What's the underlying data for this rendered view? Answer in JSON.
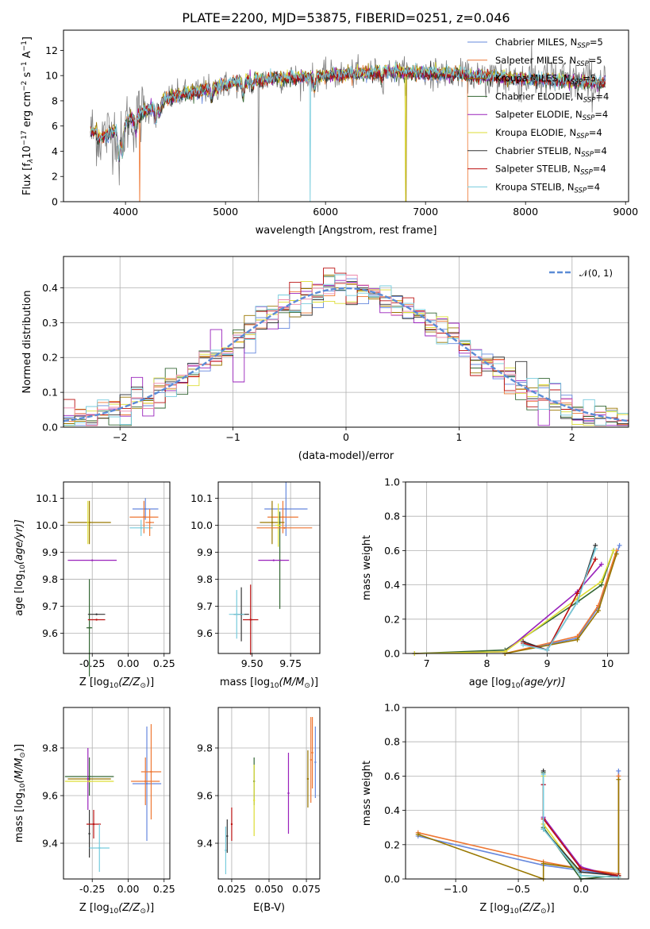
{
  "figure": {
    "title": "PLATE=2200, MJD=53875, FIBERID=0251, z=0.046"
  },
  "colors": {
    "ChabrierMILES": "#6688dd",
    "SalpeterMILES": "#ee7733",
    "KroupaMILES": "#997700",
    "ChabrierELODIE": "#336633",
    "SalpeterELODIE": "#9922bb",
    "KroupaELODIE": "#dddd33",
    "ChabrierSTELIB": "#333333",
    "SalpeterSTELIB": "#bb1111",
    "KroupaSTELIB": "#77ccdd",
    "normal": "#5b8bd6"
  },
  "chart_data": [
    {
      "id": "spectrum",
      "type": "line",
      "xlabel": "wavelength [Angstrom, rest frame]",
      "ylabel": "Flux [f",
      "ylabel_rest": "10",
      "ylabel_sup": "−17",
      "ylabel_unit": " erg cm",
      "ylabel_sup2": "−2",
      "ylabel_unit2": " s",
      "ylabel_sup3": "−1",
      "ylabel_unit3": " A",
      "ylabel_sup4": "−1",
      "ylabel_end": "]",
      "xlim": [
        3380,
        9030
      ],
      "ylim": [
        0,
        13.6
      ],
      "xticks": [
        4000,
        5000,
        6000,
        7000,
        8000,
        9000
      ],
      "yticks": [
        0,
        2,
        4,
        6,
        8,
        10,
        12
      ],
      "data_range": [
        3650,
        8800
      ],
      "legend": [
        {
          "name": "Chabrier MILES, N",
          "sub": "SSP",
          "n": "=5",
          "color": "ChabrierMILES"
        },
        {
          "name": "Salpeter MILES, N",
          "sub": "SSP",
          "n": "=5",
          "color": "SalpeterMILES"
        },
        {
          "name": "Kroupa MILES, N",
          "sub": "SSP",
          "n": "=5",
          "color": "KroupaMILES"
        },
        {
          "name": "Chabrier ELODIE, N",
          "sub": "SSP",
          "n": "=4",
          "color": "ChabrierELODIE"
        },
        {
          "name": "Salpeter ELODIE, N",
          "sub": "SSP",
          "n": "=4",
          "color": "SalpeterELODIE"
        },
        {
          "name": "Kroupa ELODIE, N",
          "sub": "SSP",
          "n": "=4",
          "color": "KroupaELODIE"
        },
        {
          "name": "Chabrier STELIB, N",
          "sub": "SSP",
          "n": "=4",
          "color": "ChabrierSTELIB"
        },
        {
          "name": "Salpeter STELIB, N",
          "sub": "SSP",
          "n": "=4",
          "color": "SalpeterSTELIB"
        },
        {
          "name": "Kroupa STELIB, N",
          "sub": "SSP",
          "n": "=4",
          "color": "KroupaSTELIB"
        }
      ],
      "legend_loc": "upper right"
    },
    {
      "id": "residuals",
      "type": "histogram",
      "xlabel": "(data-model)/error",
      "ylabel": "Normed distribution",
      "xlim": [
        -2.5,
        2.5
      ],
      "ylim": [
        0,
        0.49
      ],
      "xticks": [
        -2,
        -1,
        0,
        1,
        2
      ],
      "yticks": [
        0.0,
        0.1,
        0.2,
        0.3,
        0.4
      ],
      "bin_width": 0.1,
      "legend": "𝒩(0, 1)",
      "legend_loc": "upper right",
      "grid": true
    },
    {
      "id": "age-Z",
      "type": "errorbar",
      "xlabel": "Z [log",
      "xlabel_sub": "10",
      "xlabel_math": "(Z/Z",
      "xlabel_end": ")]",
      "ylabel": "age  [log",
      "ylabel_sub": "10",
      "ylabel_math": "(age/yr)]",
      "xlim": [
        -0.45,
        0.29
      ],
      "ylim": [
        9.525,
        10.16
      ],
      "xticks": [
        "-0.25",
        "0.00",
        "0.25"
      ],
      "xtick_vals": [
        -0.25,
        0.0,
        0.25
      ],
      "yticks": [
        "9.6",
        "9.7",
        "9.8",
        "9.9",
        "10.0",
        "10.1"
      ],
      "ytick_vals": [
        9.6,
        9.7,
        9.8,
        9.9,
        10.0,
        10.1
      ],
      "points": [
        {
          "x": 0.12,
          "y": 10.06,
          "xerr": 0.09,
          "yerr": 0.04,
          "c": "ChabrierMILES"
        },
        {
          "x": 0.11,
          "y": 10.03,
          "xerr": 0.1,
          "yerr": 0.06,
          "c": "SalpeterMILES"
        },
        {
          "x": -0.27,
          "y": 10.01,
          "xerr": 0.15,
          "yerr": 0.08,
          "c": "KroupaMILES"
        },
        {
          "x": -0.27,
          "y": 9.62,
          "xerr": 0.02,
          "yerr": 0.18,
          "c": "ChabrierELODIE"
        },
        {
          "x": -0.25,
          "y": 9.87,
          "xerr": 0.17,
          "yerr": 0.0,
          "c": "SalpeterELODIE"
        },
        {
          "x": -0.28,
          "y": 10.01,
          "xerr": 0.0,
          "yerr": 0.08,
          "c": "KroupaELODIE"
        },
        {
          "x": -0.22,
          "y": 9.67,
          "xerr": 0.06,
          "yerr": 0.0,
          "c": "ChabrierSTELIB"
        },
        {
          "x": -0.22,
          "y": 9.65,
          "xerr": 0.06,
          "yerr": 0.0,
          "c": "SalpeterSTELIB"
        },
        {
          "x": 0.09,
          "y": 9.99,
          "xerr": 0.08,
          "yerr": 0.03,
          "c": "KroupaSTELIB"
        },
        {
          "x": 0.15,
          "y": 10.01,
          "xerr": 0.03,
          "yerr": 0.05,
          "c": "SalpeterMILES"
        }
      ]
    },
    {
      "id": "age-mass",
      "type": "errorbar",
      "xlabel": "mass [log",
      "xlabel_sub": "10",
      "xlabel_math": "(M/M",
      "xlabel_end": ")]",
      "xlim": [
        9.28,
        9.94
      ],
      "ylim": [
        9.525,
        10.16
      ],
      "xticks": [
        "9.50",
        "9.75"
      ],
      "xtick_vals": [
        9.5,
        9.75
      ],
      "yticks": [
        "9.6",
        "9.7",
        "9.8",
        "9.9",
        "10.0",
        "10.1"
      ],
      "ytick_vals": [
        9.6,
        9.7,
        9.8,
        9.9,
        10.0,
        10.1
      ],
      "points": [
        {
          "x": 9.72,
          "y": 10.06,
          "xerr": 0.14,
          "yerr": 0.1,
          "c": "ChabrierMILES"
        },
        {
          "x": 9.7,
          "y": 10.03,
          "xerr": 0.1,
          "yerr": 0.06,
          "c": "SalpeterMILES"
        },
        {
          "x": 9.63,
          "y": 10.01,
          "xerr": 0.08,
          "yerr": 0.08,
          "c": "KroupaMILES"
        },
        {
          "x": 9.68,
          "y": 9.87,
          "xerr": 0.0,
          "yerr": 0.18,
          "c": "ChabrierELODIE"
        },
        {
          "x": 9.64,
          "y": 9.87,
          "xerr": 0.1,
          "yerr": 0.0,
          "c": "SalpeterELODIE"
        },
        {
          "x": 9.67,
          "y": 10.0,
          "xerr": 0.02,
          "yerr": 0.08,
          "c": "KroupaELODIE"
        },
        {
          "x": 9.43,
          "y": 9.67,
          "xerr": 0.05,
          "yerr": 0.1,
          "c": "ChabrierSTELIB"
        },
        {
          "x": 9.49,
          "y": 9.65,
          "xerr": 0.05,
          "yerr": 0.13,
          "c": "SalpeterSTELIB"
        },
        {
          "x": 9.4,
          "y": 9.67,
          "xerr": 0.05,
          "yerr": 0.09,
          "c": "KroupaSTELIB"
        },
        {
          "x": 9.71,
          "y": 9.99,
          "xerr": 0.18,
          "yerr": 0.0,
          "c": "SalpeterMILES"
        }
      ]
    },
    {
      "id": "massweight-age",
      "type": "line",
      "xlabel": "age  [log",
      "xlabel_sub": "10",
      "xlabel_math": "(age/yr)]",
      "ylabel": "mass weight",
      "xlim": [
        6.65,
        10.35
      ],
      "ylim": [
        0,
        1.0
      ],
      "xticks": [
        "7",
        "8",
        "9",
        "10"
      ],
      "xtick_vals": [
        7,
        8,
        9,
        10
      ],
      "yticks": [
        "0.0",
        "0.2",
        "0.4",
        "0.6",
        "0.8",
        "1.0"
      ],
      "ytick_vals": [
        0,
        0.2,
        0.4,
        0.6,
        0.8,
        1.0
      ],
      "series": [
        {
          "c": "ChabrierMILES",
          "x": [
            8.3,
            9.5,
            9.85,
            10.2
          ],
          "y": [
            0.0,
            0.09,
            0.27,
            0.63
          ]
        },
        {
          "c": "SalpeterMILES",
          "x": [
            8.3,
            9.5,
            9.85,
            10.15
          ],
          "y": [
            0.0,
            0.1,
            0.28,
            0.6
          ]
        },
        {
          "c": "KroupaMILES",
          "x": [
            8.3,
            9.5,
            9.85,
            10.15
          ],
          "y": [
            0.0,
            0.08,
            0.25,
            0.58
          ]
        },
        {
          "c": "ChabrierELODIE",
          "x": [
            6.8,
            8.3,
            9.5,
            9.9,
            10.1
          ],
          "y": [
            0.0,
            0.02,
            0.3,
            0.4,
            0.6
          ]
        },
        {
          "c": "SalpeterELODIE",
          "x": [
            6.8,
            8.3,
            9.5,
            9.9
          ],
          "y": [
            0.0,
            0.01,
            0.36,
            0.52
          ]
        },
        {
          "c": "KroupaELODIE",
          "x": [
            6.8,
            8.3,
            9.5,
            9.9,
            10.1
          ],
          "y": [
            0.0,
            0.01,
            0.32,
            0.42,
            0.6
          ]
        },
        {
          "c": "ChabrierSTELIB",
          "x": [
            8.6,
            9.0,
            9.5,
            9.8
          ],
          "y": [
            0.07,
            0.02,
            0.3,
            0.63
          ]
        },
        {
          "c": "SalpeterSTELIB",
          "x": [
            8.6,
            9.0,
            9.5,
            9.8
          ],
          "y": [
            0.06,
            0.02,
            0.35,
            0.55
          ]
        },
        {
          "c": "KroupaSTELIB",
          "x": [
            8.6,
            9.0,
            9.5,
            9.8
          ],
          "y": [
            0.05,
            0.02,
            0.3,
            0.61
          ]
        }
      ]
    },
    {
      "id": "mass-Z",
      "type": "errorbar",
      "xlabel": "Z [log",
      "xlabel_sub": "10",
      "xlabel_math": "(Z/Z",
      "xlabel_end": ")]",
      "ylabel": "mass [log",
      "ylabel_sub": "10",
      "ylabel_math": "(M/M",
      "ylabel_end": ")]",
      "xlim": [
        -0.45,
        0.29
      ],
      "ylim": [
        9.25,
        9.97
      ],
      "xticks": [
        "-0.25",
        "0.00",
        "0.25"
      ],
      "xtick_vals": [
        -0.25,
        0.0,
        0.25
      ],
      "yticks": [
        "9.4",
        "9.6",
        "9.8"
      ],
      "ytick_vals": [
        9.4,
        9.6,
        9.8
      ],
      "points": [
        {
          "x": 0.13,
          "y": 9.65,
          "xerr": 0.1,
          "yerr": 0.24,
          "c": "ChabrierMILES"
        },
        {
          "x": 0.12,
          "y": 9.66,
          "xerr": 0.1,
          "yerr": 0.1,
          "c": "SalpeterMILES"
        },
        {
          "x": -0.27,
          "y": 9.67,
          "xerr": 0.15,
          "yerr": 0.0,
          "c": "KroupaMILES"
        },
        {
          "x": -0.27,
          "y": 9.68,
          "xerr": 0.17,
          "yerr": 0.08,
          "c": "ChabrierELODIE"
        },
        {
          "x": -0.28,
          "y": 9.67,
          "xerr": 0.0,
          "yerr": 0.13,
          "c": "SalpeterELODIE"
        },
        {
          "x": -0.27,
          "y": 9.66,
          "xerr": 0.17,
          "yerr": 0.0,
          "c": "KroupaELODIE"
        },
        {
          "x": -0.27,
          "y": 9.44,
          "xerr": 0.0,
          "yerr": 0.1,
          "c": "ChabrierSTELIB"
        },
        {
          "x": -0.24,
          "y": 9.48,
          "xerr": 0.05,
          "yerr": 0.06,
          "c": "SalpeterSTELIB"
        },
        {
          "x": -0.2,
          "y": 9.38,
          "xerr": 0.07,
          "yerr": 0.1,
          "c": "KroupaSTELIB"
        },
        {
          "x": 0.16,
          "y": 9.7,
          "xerr": 0.07,
          "yerr": 0.2,
          "c": "SalpeterMILES"
        }
      ]
    },
    {
      "id": "mass-EBV",
      "type": "errorbar",
      "xlabel": "E(B-V)",
      "xlim": [
        0.016,
        0.084
      ],
      "ylim": [
        9.25,
        9.97
      ],
      "xticks": [
        "0.025",
        "0.050",
        "0.075"
      ],
      "xtick_vals": [
        0.025,
        0.05,
        0.075
      ],
      "yticks": [
        "9.4",
        "9.6",
        "9.8"
      ],
      "ytick_vals": [
        9.4,
        9.6,
        9.8
      ],
      "points": [
        {
          "x": 0.081,
          "y": 9.74,
          "xerr": 0.0,
          "yerr": 0.15,
          "c": "ChabrierMILES"
        },
        {
          "x": 0.078,
          "y": 9.75,
          "xerr": 0.0,
          "yerr": 0.18,
          "c": "SalpeterMILES"
        },
        {
          "x": 0.076,
          "y": 9.67,
          "xerr": 0.0,
          "yerr": 0.12,
          "c": "KroupaMILES"
        },
        {
          "x": 0.04,
          "y": 9.66,
          "xerr": 0.0,
          "yerr": 0.1,
          "c": "ChabrierELODIE"
        },
        {
          "x": 0.063,
          "y": 9.61,
          "xerr": 0.0,
          "yerr": 0.17,
          "c": "SalpeterELODIE"
        },
        {
          "x": 0.04,
          "y": 9.58,
          "xerr": 0.0,
          "yerr": 0.15,
          "c": "KroupaELODIE"
        },
        {
          "x": 0.022,
          "y": 9.43,
          "xerr": 0.0,
          "yerr": 0.07,
          "c": "ChabrierSTELIB"
        },
        {
          "x": 0.025,
          "y": 9.48,
          "xerr": 0.0,
          "yerr": 0.07,
          "c": "SalpeterSTELIB"
        },
        {
          "x": 0.021,
          "y": 9.37,
          "xerr": 0.0,
          "yerr": 0.1,
          "c": "KroupaSTELIB"
        },
        {
          "x": 0.079,
          "y": 9.78,
          "xerr": 0.0,
          "yerr": 0.15,
          "c": "SalpeterMILES"
        }
      ]
    },
    {
      "id": "massweight-Z",
      "type": "line",
      "xlabel": "Z [log",
      "xlabel_sub": "10",
      "xlabel_math": "(Z/Z",
      "xlabel_end": ")]",
      "ylabel": "mass weight",
      "xlim": [
        -1.4,
        0.38
      ],
      "ylim": [
        0,
        1.0
      ],
      "xticks": [
        "−1.0",
        "−0.5",
        "0.0"
      ],
      "xtick_vals": [
        -1.0,
        -0.5,
        0.0
      ],
      "yticks": [
        "0.0",
        "0.2",
        "0.4",
        "0.6",
        "0.8",
        "1.0"
      ],
      "ytick_vals": [
        0,
        0.2,
        0.4,
        0.6,
        0.8,
        1.0
      ],
      "series": [
        {
          "c": "ChabrierMILES",
          "x": [
            -1.3,
            -0.3,
            0.0,
            0.3,
            0.3
          ],
          "y": [
            0.25,
            0.08,
            0.05,
            0.02,
            0.63
          ]
        },
        {
          "c": "SalpeterMILES",
          "x": [
            -1.3,
            -0.3,
            0.0,
            0.3,
            0.3
          ],
          "y": [
            0.27,
            0.1,
            0.06,
            0.03,
            0.6
          ]
        },
        {
          "c": "KroupaMILES",
          "x": [
            -1.3,
            -0.3,
            -0.3,
            0.0,
            0.3,
            0.3
          ],
          "y": [
            0.26,
            0.0,
            0.09,
            0.06,
            0.02,
            0.58
          ]
        },
        {
          "c": "ChabrierELODIE",
          "x": [
            -0.3,
            -0.3,
            0.0,
            0.3
          ],
          "y": [
            0.62,
            0.3,
            0.0,
            0.02
          ]
        },
        {
          "c": "SalpeterELODIE",
          "x": [
            -0.3,
            -0.3,
            0.0,
            0.3
          ],
          "y": [
            0.55,
            0.36,
            0.07,
            0.01
          ]
        },
        {
          "c": "KroupaELODIE",
          "x": [
            -0.3,
            -0.3,
            0.0,
            0.3
          ],
          "y": [
            0.6,
            0.32,
            0.02,
            0.01
          ]
        },
        {
          "c": "ChabrierSTELIB",
          "x": [
            -0.3,
            -0.3,
            0.0,
            0.3
          ],
          "y": [
            0.63,
            0.29,
            0.04,
            0.02
          ]
        },
        {
          "c": "SalpeterSTELIB",
          "x": [
            -0.3,
            -0.3,
            0.0,
            0.3
          ],
          "y": [
            0.55,
            0.35,
            0.06,
            0.02
          ]
        },
        {
          "c": "KroupaSTELIB",
          "x": [
            -0.3,
            -0.3,
            0.0,
            0.3
          ],
          "y": [
            0.61,
            0.29,
            0.02,
            0.01
          ]
        }
      ]
    }
  ]
}
